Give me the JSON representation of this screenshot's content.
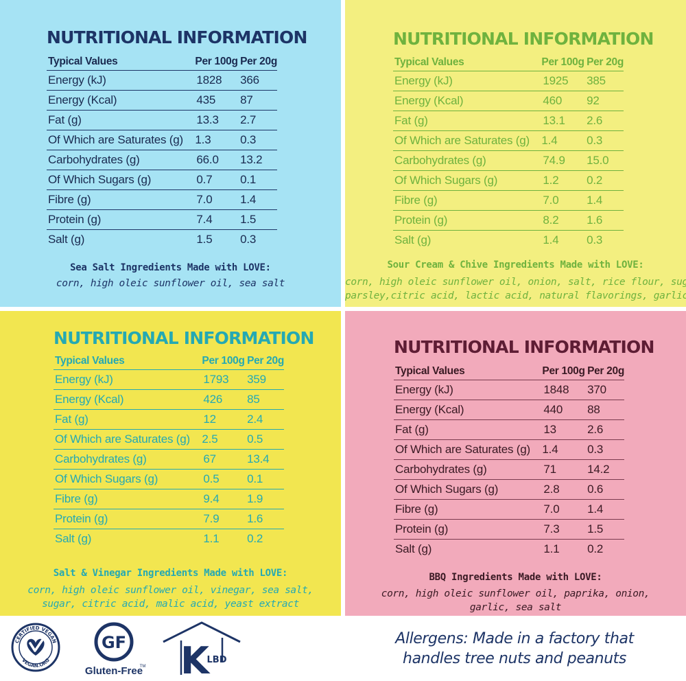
{
  "panels": [
    {
      "title": "NUTRITIONAL INFORMATION",
      "headers": [
        "Typical Values",
        "Per 100g",
        "Per 20g"
      ],
      "rows": [
        [
          "Energy (kJ)",
          "1828",
          "366"
        ],
        [
          "Energy (Kcal)",
          "435",
          "87"
        ],
        [
          "Fat (g)",
          "13.3",
          "2.7"
        ],
        [
          "Of Which are Saturates (g)",
          "1.3",
          "0.3"
        ],
        [
          "Carbohydrates (g)",
          "66.0",
          "13.2"
        ],
        [
          "Of Which Sugars (g)",
          "0.7",
          "0.1"
        ],
        [
          "Fibre (g)",
          "7.0",
          "1.4"
        ],
        [
          "Protein (g)",
          "7.4",
          "1.5"
        ],
        [
          "Salt (g)",
          "1.5",
          "0.3"
        ]
      ],
      "ingredients_heading": "Sea Salt Ingredients Made with LOVE:",
      "ingredients_lines": [
        "corn, high oleic sunflower oil, sea salt"
      ]
    },
    {
      "title": "NUTRITIONAL INFORMATION",
      "headers": [
        "Typical Values",
        "Per 100g",
        "Per 20g"
      ],
      "rows": [
        [
          "Energy (kJ)",
          "1925",
          "385"
        ],
        [
          "Energy (Kcal)",
          "460",
          "92"
        ],
        [
          "Fat (g)",
          "13.1",
          "2.6"
        ],
        [
          "Of Which are Saturates (g)",
          "1.4",
          "0.3"
        ],
        [
          "Carbohydrates (g)",
          "74.9",
          "15.0"
        ],
        [
          "Of Which Sugars (g)",
          "1.2",
          "0.2"
        ],
        [
          "Fibre (g)",
          "7.0",
          "1.4"
        ],
        [
          "Protein (g)",
          "8.2",
          "1.6"
        ],
        [
          "Salt (g)",
          "1.4",
          "0.3"
        ]
      ],
      "ingredients_heading": "Sour Cream & Chive Ingredients Made with LOVE:",
      "ingredients_lines": [
        "corn, high oleic sunflower oil, onion, salt, rice flour, sugar,",
        "parsley,citric acid, lactic acid, natural flavorings, garlic"
      ]
    },
    {
      "title": "NUTRITIONAL INFORMATION",
      "headers": [
        "Typical Values",
        "Per 100g",
        "Per 20g"
      ],
      "rows": [
        [
          "Energy (kJ)",
          "1793",
          "359"
        ],
        [
          "Energy (Kcal)",
          "426",
          "85"
        ],
        [
          "Fat (g)",
          "12",
          "2.4"
        ],
        [
          "Of Which are Saturates (g)",
          "2.5",
          "0.5"
        ],
        [
          "Carbohydrates (g)",
          "67",
          "13.4"
        ],
        [
          "Of Which Sugars (g)",
          "0.5",
          "0.1"
        ],
        [
          "Fibre (g)",
          "9.4",
          "1.9"
        ],
        [
          "Protein (g)",
          "7.9",
          "1.6"
        ],
        [
          "Salt (g)",
          "1.1",
          "0.2"
        ]
      ],
      "ingredients_heading": "Salt & Vinegar Ingredients Made with LOVE:",
      "ingredients_lines": [
        "corn, high oleic sunflower oil, vinegar, sea salt,",
        "sugar, citric acid, malic acid, yeast extract"
      ]
    },
    {
      "title": "NUTRITIONAL INFORMATION",
      "headers": [
        "Typical Values",
        "Per 100g",
        "Per 20g"
      ],
      "rows": [
        [
          "Energy (kJ)",
          "1848",
          "370"
        ],
        [
          "Energy (Kcal)",
          "440",
          "88"
        ],
        [
          "Fat (g)",
          "13",
          "2.6"
        ],
        [
          "Of Which are Saturates (g)",
          "1.4",
          "0.3"
        ],
        [
          "Carbohydrates (g)",
          "71",
          "14.2"
        ],
        [
          "Of Which Sugars (g)",
          "2.8",
          "0.6"
        ],
        [
          "Fibre (g)",
          "7.0",
          "1.4"
        ],
        [
          "Protein (g)",
          "7.3",
          "1.5"
        ],
        [
          "Salt (g)",
          "1.1",
          "0.2"
        ]
      ],
      "ingredients_heading": "BBQ Ingredients Made with LOVE:",
      "ingredients_lines": [
        "corn, high oleic sunflower oil, paprika, onion,",
        "garlic, sea salt"
      ]
    }
  ],
  "badges": {
    "vegan": {
      "top_text": "CERTIFIED VEGAN",
      "bottom_text": "VEGAN.ORG",
      "icon": "vegan-heart-icon"
    },
    "gluten_free": {
      "mark": "GF",
      "label": "Gluten-Free",
      "tm": "TM",
      "icon": "gluten-free-icon"
    },
    "klbd": {
      "k": "K",
      "letters": "LBD",
      "icon": "kosher-klbd-icon"
    }
  },
  "allergens": {
    "line1": "Allergens: Made in a factory that",
    "line2": "handles tree nuts and peanuts"
  },
  "colors": {
    "panel1_bg": "#a6e3f4",
    "panel1_fg": "#1d3466",
    "panel2_bg": "#f3ef80",
    "panel2_fg": "#6fb23e",
    "panel3_bg": "#f2e650",
    "panel3_fg": "#25a9b3",
    "panel4_bg": "#f2aabb",
    "panel4_fg": "#5e1d34"
  }
}
